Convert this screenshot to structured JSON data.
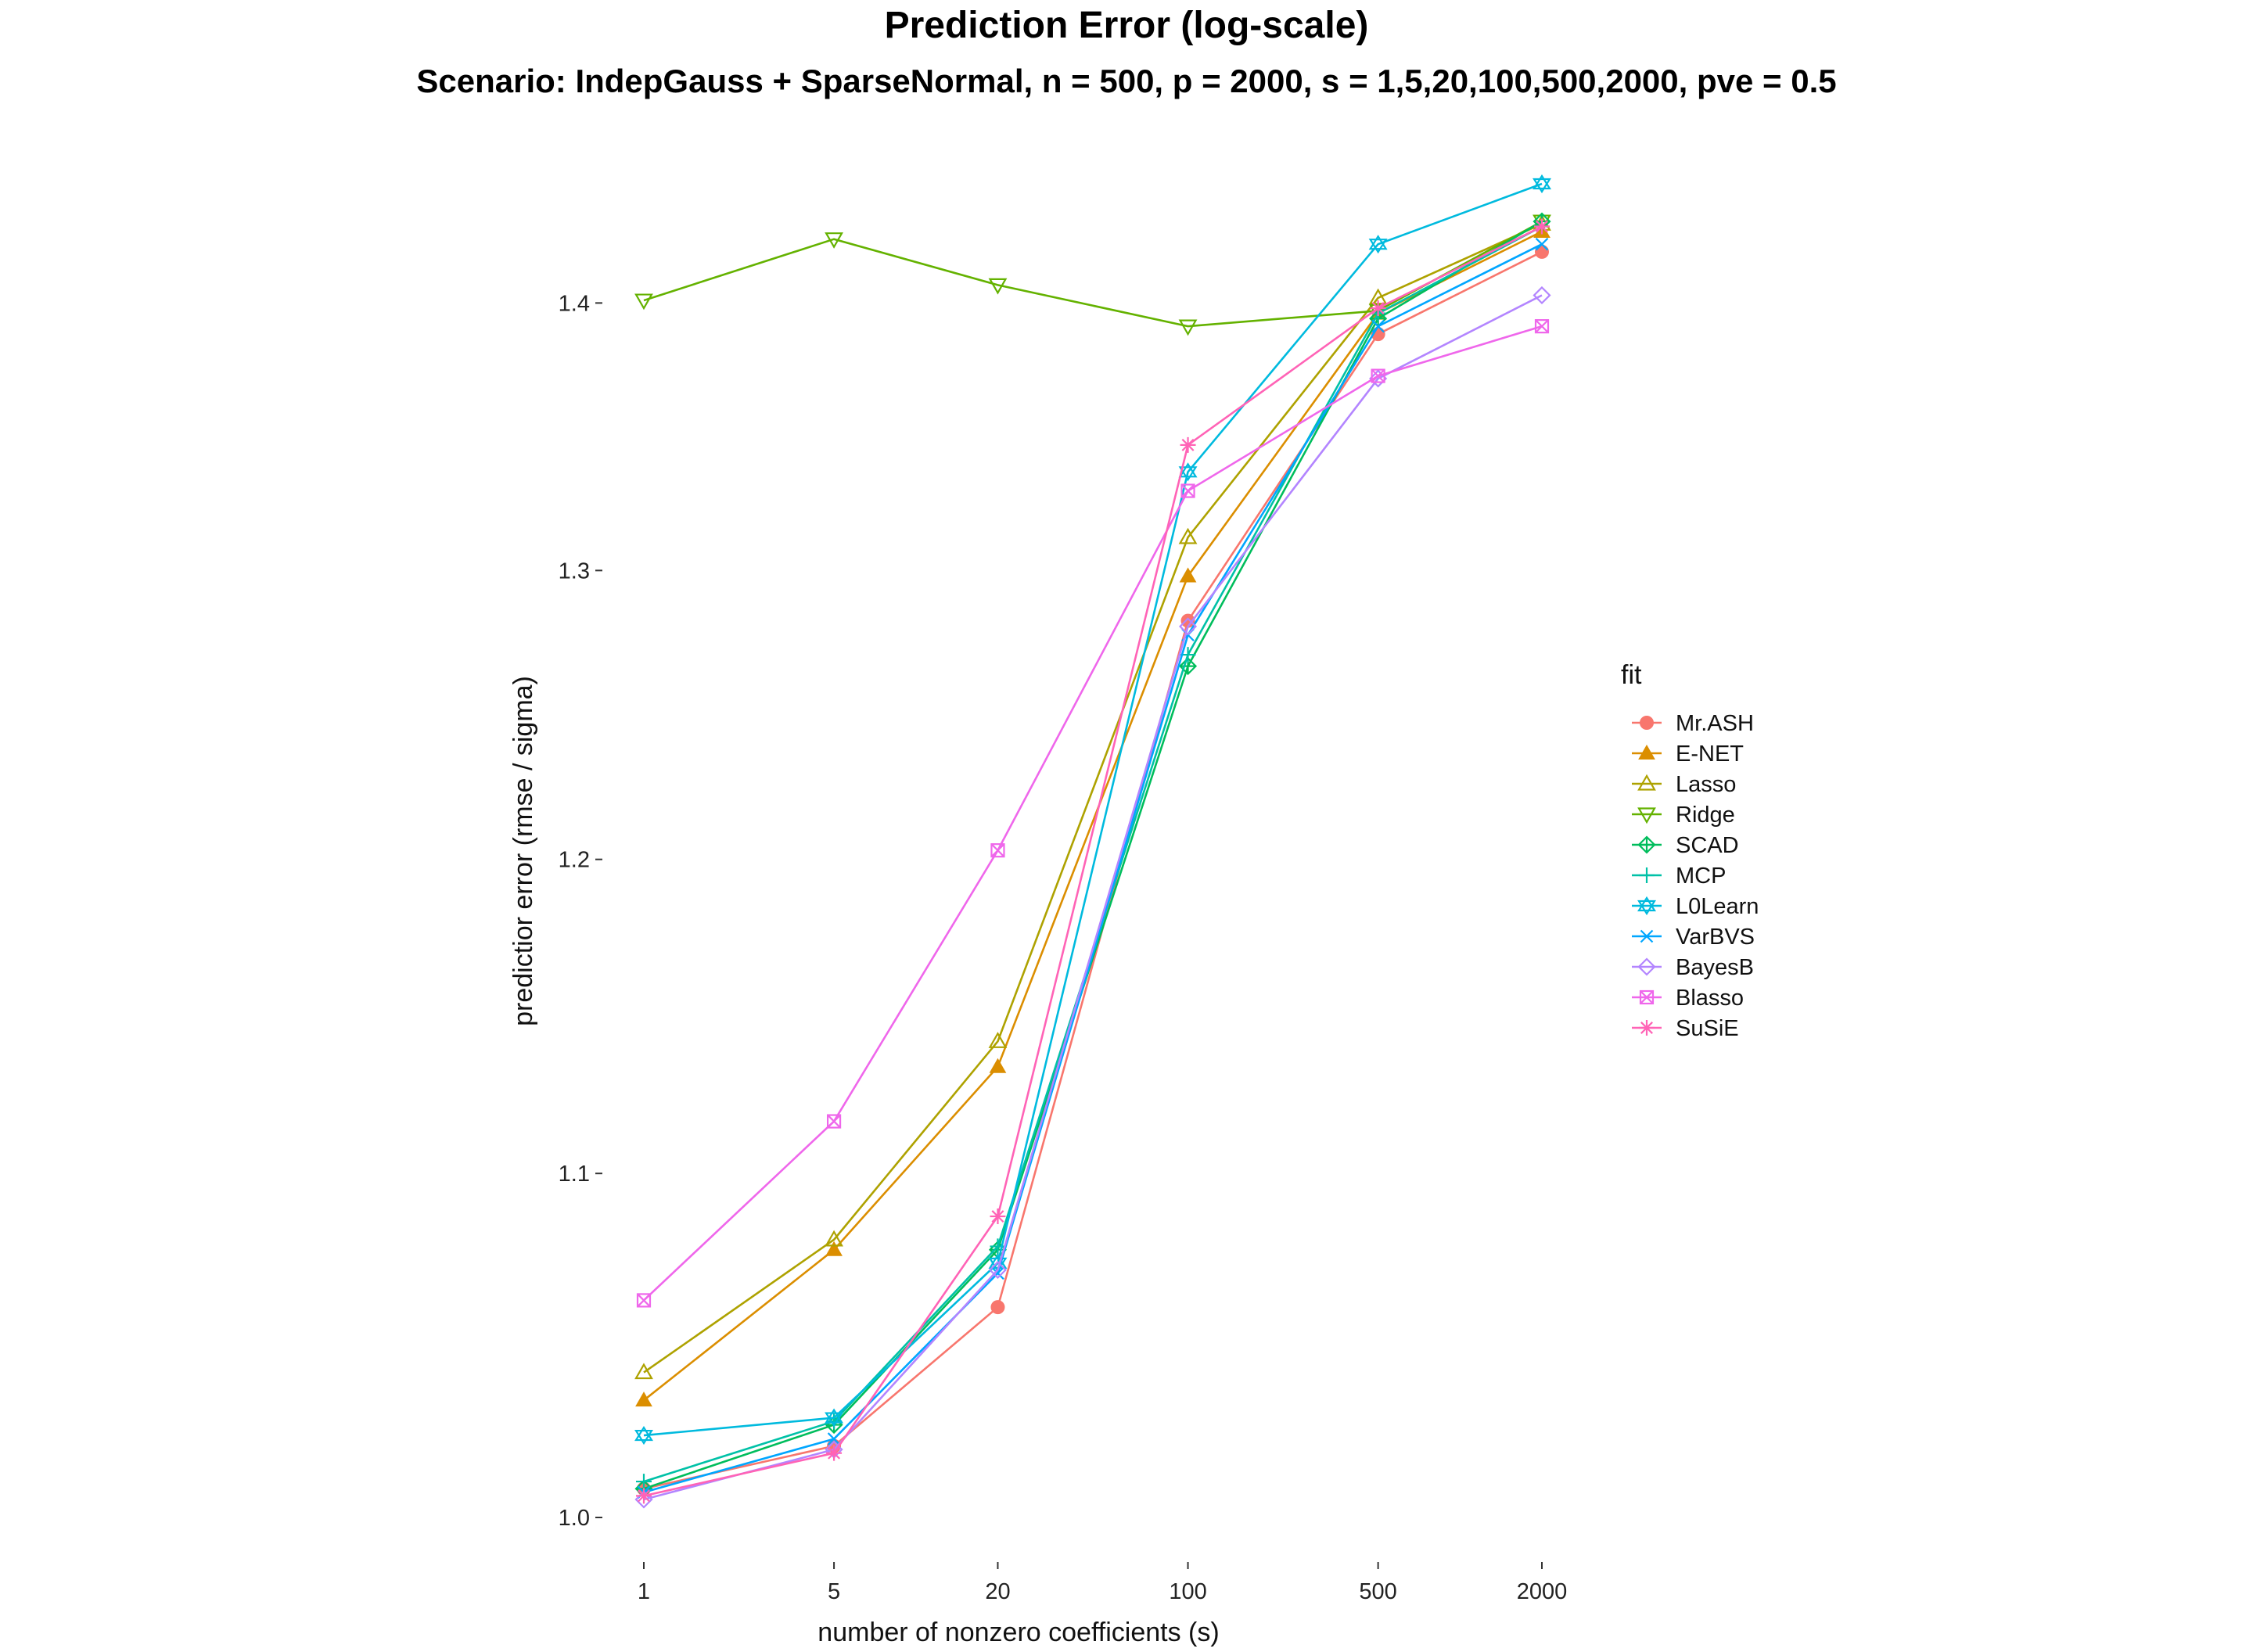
{
  "chart_data": {
    "type": "line",
    "title": "Prediction Error (log-scale)",
    "subtitle": "Scenario: IndepGauss + SparseNormal, n = 500, p = 2000, s = 1,5,20,100,500,2000, pve = 0.5",
    "xlabel": "number of nonzero coefficients (s)",
    "ylabel": "predictior error (rmse / sigma)",
    "x_scale": "log",
    "y_scale": "log",
    "x": [
      1,
      5,
      20,
      100,
      500,
      2000
    ],
    "x_tick_labels": [
      "1",
      "5",
      "20",
      "100",
      "500",
      "2000"
    ],
    "y_ticks": [
      1.0,
      1.1,
      1.2,
      1.3,
      1.4
    ],
    "y_tick_labels": [
      "1.0",
      "1.1",
      "1.2",
      "1.3",
      "1.4"
    ],
    "ylim": [
      0.985,
      1.46
    ],
    "grid": false,
    "legend_title": "fit",
    "legend_position": "right",
    "series": [
      {
        "name": "Mr.ASH",
        "color": "#F8766D",
        "marker": "circle",
        "values": [
          1.008,
          1.02,
          1.06,
          1.282,
          1.388,
          1.42
        ]
      },
      {
        "name": "E-NET",
        "color": "#DB8E00",
        "marker": "triangle",
        "values": [
          1.033,
          1.077,
          1.133,
          1.298,
          1.396,
          1.428
        ]
      },
      {
        "name": "Lasso",
        "color": "#AEA200",
        "marker": "triangle-open",
        "values": [
          1.041,
          1.08,
          1.141,
          1.312,
          1.402,
          1.431
        ]
      },
      {
        "name": "Ridge",
        "color": "#64B200",
        "marker": "triangle-down",
        "values": [
          1.401,
          1.425,
          1.407,
          1.391,
          1.397,
          1.432
        ]
      },
      {
        "name": "SCAD",
        "color": "#00BD5C",
        "marker": "diamond-plus",
        "values": [
          1.008,
          1.026,
          1.077,
          1.266,
          1.394,
          1.432
        ]
      },
      {
        "name": "MCP",
        "color": "#00C1A7",
        "marker": "plus",
        "values": [
          1.01,
          1.027,
          1.078,
          1.27,
          1.396,
          1.43
        ]
      },
      {
        "name": "L0Learn",
        "color": "#00BADE",
        "marker": "star-of-david",
        "values": [
          1.023,
          1.028,
          1.073,
          1.336,
          1.423,
          1.447
        ]
      },
      {
        "name": "VarBVS",
        "color": "#00A6FF",
        "marker": "cross",
        "values": [
          1.007,
          1.022,
          1.07,
          1.277,
          1.391,
          1.423
        ]
      },
      {
        "name": "BayesB",
        "color": "#B385FF",
        "marker": "diamond",
        "values": [
          1.005,
          1.019,
          1.071,
          1.28,
          1.371,
          1.403
        ]
      },
      {
        "name": "Blasso",
        "color": "#EF67EB",
        "marker": "square-x",
        "values": [
          1.062,
          1.116,
          1.203,
          1.329,
          1.372,
          1.391
        ]
      },
      {
        "name": "SuSiE",
        "color": "#FF63B6",
        "marker": "asterisk",
        "values": [
          1.006,
          1.018,
          1.087,
          1.346,
          1.398,
          1.43
        ]
      }
    ]
  }
}
